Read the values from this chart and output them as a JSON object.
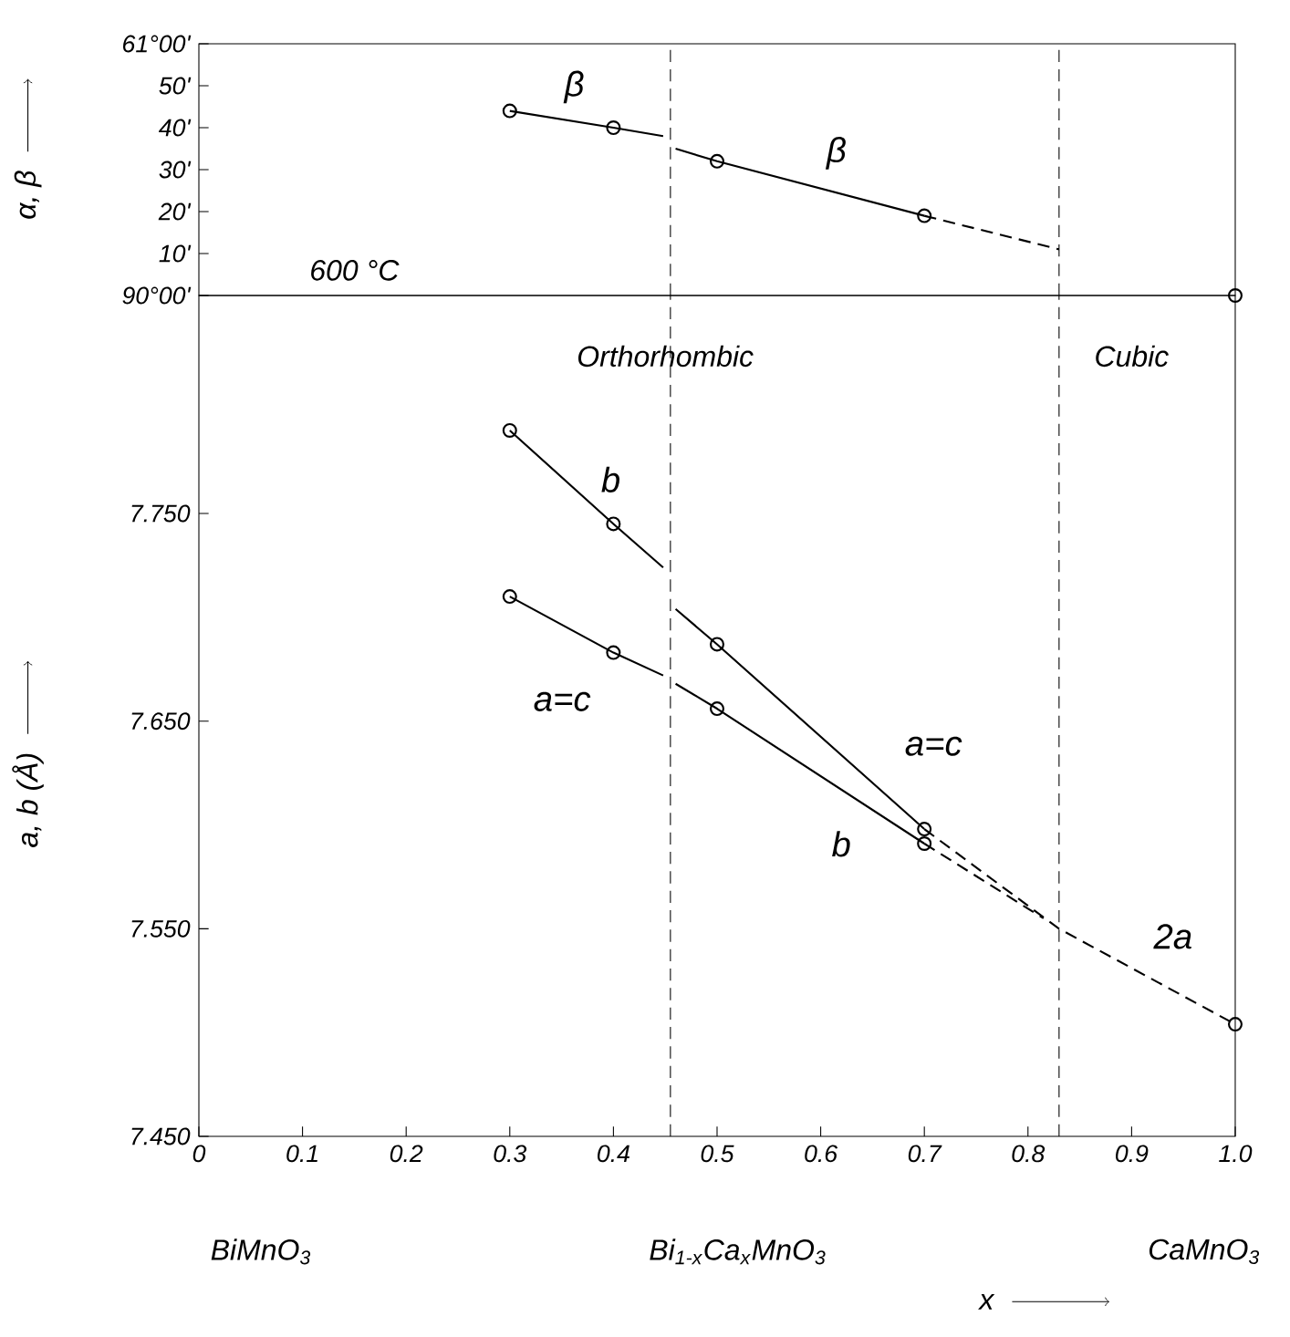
{
  "chart_data": [
    {
      "type": "line",
      "ylabel": "α, β",
      "xlim": [
        0,
        1.0
      ],
      "ylim": [
        0,
        60
      ],
      "yticks": [
        {
          "value": 0,
          "label": "90°00'"
        },
        {
          "value": 10,
          "label": "10'"
        },
        {
          "value": 20,
          "label": "20'"
        },
        {
          "value": 30,
          "label": "30'"
        },
        {
          "value": 40,
          "label": "40'"
        },
        {
          "value": 50,
          "label": "50'"
        },
        {
          "value": 60,
          "label": "61°00'"
        }
      ],
      "tick_labels": "y",
      "series": [
        {
          "type": "line",
          "name": "β",
          "color": "#000000",
          "line_style": "solid",
          "x": [
            0.3,
            0.4,
            0.448
          ],
          "values": [
            44,
            40,
            38
          ]
        },
        {
          "type": "line",
          "name": "β",
          "color": "#000000",
          "line_style": "solid",
          "x": [
            0.46,
            0.5,
            0.7
          ],
          "values": [
            35,
            32,
            19
          ]
        },
        {
          "type": "line",
          "color": "#000000",
          "line_style": "dashed",
          "x": [
            0.7,
            0.83
          ],
          "values": [
            19,
            11
          ]
        },
        {
          "type": "scatter",
          "color": "#000000",
          "marker": "circle",
          "x": [
            0.3,
            0.4,
            0.5,
            0.7,
            1.0
          ],
          "values": [
            44,
            40,
            32,
            19,
            0
          ]
        }
      ],
      "ref_lines": [
        {
          "axis": "x",
          "value": 0.455,
          "color": "#000000",
          "line_style": "dashed"
        },
        {
          "axis": "x",
          "value": 0.83,
          "color": "#000000",
          "line_style": "dashed"
        }
      ],
      "annotations": [
        "600 °C"
      ]
    },
    {
      "type": "line",
      "xlabel": "x",
      "ylabel": "a, b (Å)",
      "xlim": [
        0,
        1.0
      ],
      "ylim": [
        7.45,
        7.855
      ],
      "xticks": [
        0,
        0.1,
        0.2,
        0.3,
        0.4,
        0.5,
        0.6,
        0.7,
        0.8,
        0.9,
        {
          "value": 1.0,
          "label": "1.0"
        }
      ],
      "yticks": [
        {
          "value": 7.45,
          "label": "7.450"
        },
        {
          "value": 7.55,
          "label": "7.550"
        },
        {
          "value": 7.65,
          "label": "7.650"
        },
        {
          "value": 7.75,
          "label": "7.750"
        }
      ],
      "series": [
        {
          "type": "line",
          "name": "b",
          "color": "#000000",
          "line_style": "solid",
          "x": [
            0.3,
            0.4,
            0.448
          ],
          "values": [
            7.79,
            7.745,
            7.724
          ]
        },
        {
          "type": "line",
          "name": "a=c",
          "color": "#000000",
          "line_style": "solid",
          "x": [
            0.3,
            0.4,
            0.448
          ],
          "values": [
            7.71,
            7.683,
            7.672
          ]
        },
        {
          "type": "line",
          "name": "a=c",
          "color": "#000000",
          "line_style": "solid",
          "x": [
            0.46,
            0.5,
            0.7
          ],
          "values": [
            7.704,
            7.687,
            7.598
          ]
        },
        {
          "type": "line",
          "name": "b",
          "color": "#000000",
          "line_style": "solid",
          "x": [
            0.46,
            0.5,
            0.7
          ],
          "values": [
            7.668,
            7.656,
            7.591
          ]
        },
        {
          "type": "line",
          "name": "2a",
          "color": "#000000",
          "line_style": "dashed",
          "x": [
            0.7,
            0.83,
            1.0
          ],
          "values": [
            7.598,
            7.55,
            7.504
          ]
        },
        {
          "type": "line",
          "color": "#000000",
          "line_style": "dashed",
          "x": [
            0.7,
            0.815
          ],
          "values": [
            7.591,
            7.555
          ]
        },
        {
          "type": "scatter",
          "color": "#000000",
          "marker": "circle",
          "x": [
            0.3,
            0.4,
            0.3,
            0.4,
            0.5,
            0.5,
            0.7,
            0.7,
            1.0
          ],
          "values": [
            7.79,
            7.745,
            7.71,
            7.683,
            7.687,
            7.656,
            7.598,
            7.591,
            7.504
          ]
        }
      ],
      "ref_lines": [
        {
          "axis": "x",
          "value": 0.455,
          "color": "#000000",
          "line_style": "dashed"
        },
        {
          "axis": "x",
          "value": 0.83,
          "color": "#000000",
          "line_style": "dashed"
        }
      ],
      "annotations": [
        "Orthorhombic",
        "Cubic",
        "BiMnO$_{3}$",
        "Bi$_{1-x}$Ca$_{x}$MnO$_{3}$",
        "CaMnO$_{3}$"
      ]
    }
  ]
}
